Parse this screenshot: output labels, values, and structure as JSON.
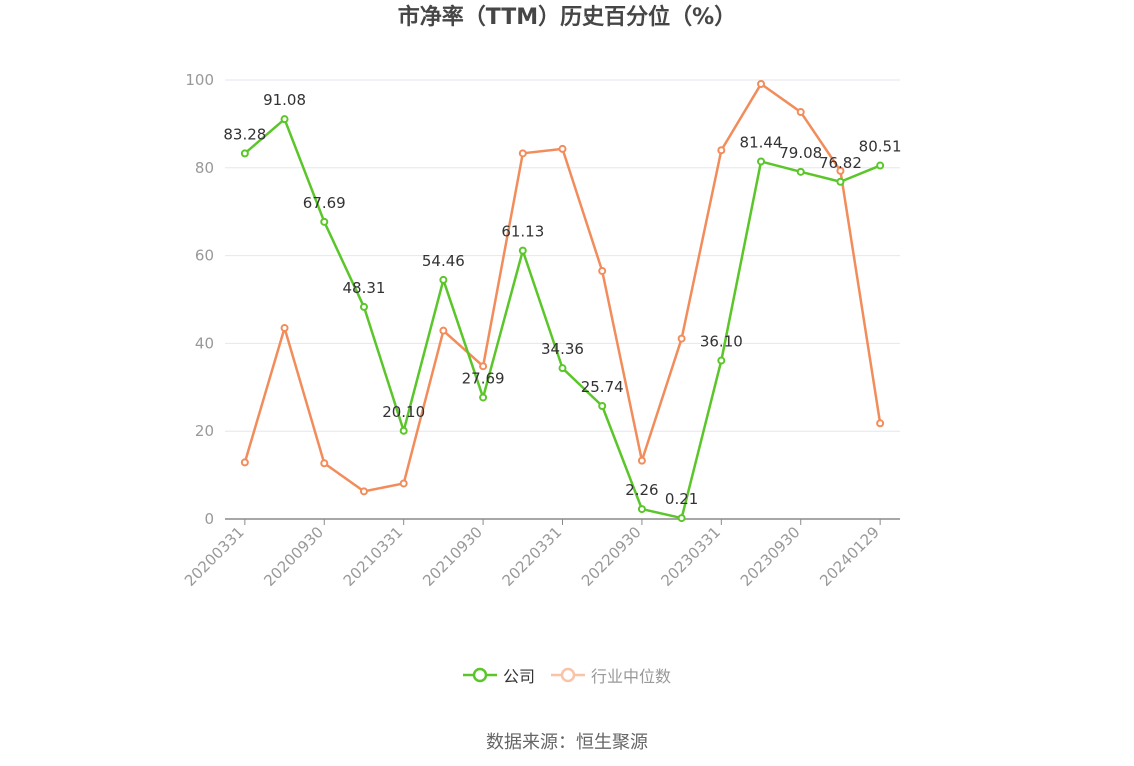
{
  "chart_data": {
    "type": "line",
    "title": "市净率（TTM）历史百分位（%）",
    "xlabel": "",
    "ylabel": "",
    "ylim": [
      0,
      100
    ],
    "y_ticks": [
      0,
      20,
      40,
      60,
      80,
      100
    ],
    "x": [
      "20200331",
      "20200630",
      "20200930",
      "20201231",
      "20210331",
      "20210630",
      "20210930",
      "20211231",
      "20220331",
      "20220630",
      "20220930",
      "20221231",
      "20230331",
      "20230630",
      "20230930",
      "20231231",
      "20240129"
    ],
    "x_tick_labels": [
      "20200331",
      "20200930",
      "20210331",
      "20210930",
      "20220331",
      "20220930",
      "20230331",
      "20230930",
      "20240129"
    ],
    "grid": true,
    "legend_position": "bottom",
    "series": [
      {
        "name": "公司",
        "color": "#5ac629",
        "values": [
          83.28,
          91.08,
          67.69,
          48.31,
          20.1,
          54.46,
          27.69,
          61.13,
          34.36,
          25.74,
          2.26,
          0.21,
          36.1,
          81.44,
          79.08,
          76.82,
          80.51
        ],
        "labels": [
          "83.28",
          "91.08",
          "67.69",
          "48.31",
          "20.10",
          "54.46",
          "27.69",
          "61.13",
          "34.36",
          "25.74",
          "2.26",
          "0.21",
          "36.10",
          "81.44",
          "79.08",
          "76.82",
          "80.51"
        ]
      },
      {
        "name": "行业中位数",
        "color": "#f28c5b",
        "values": [
          12.9,
          43.5,
          12.7,
          6.3,
          8.1,
          42.9,
          34.8,
          83.3,
          84.3,
          56.5,
          13.3,
          41.1,
          84.0,
          99.1,
          92.7,
          79.3,
          21.8
        ]
      }
    ]
  },
  "legend": {
    "company_label": "公司",
    "industry_label": "行业中位数"
  },
  "source_text": "数据来源：恒生聚源"
}
